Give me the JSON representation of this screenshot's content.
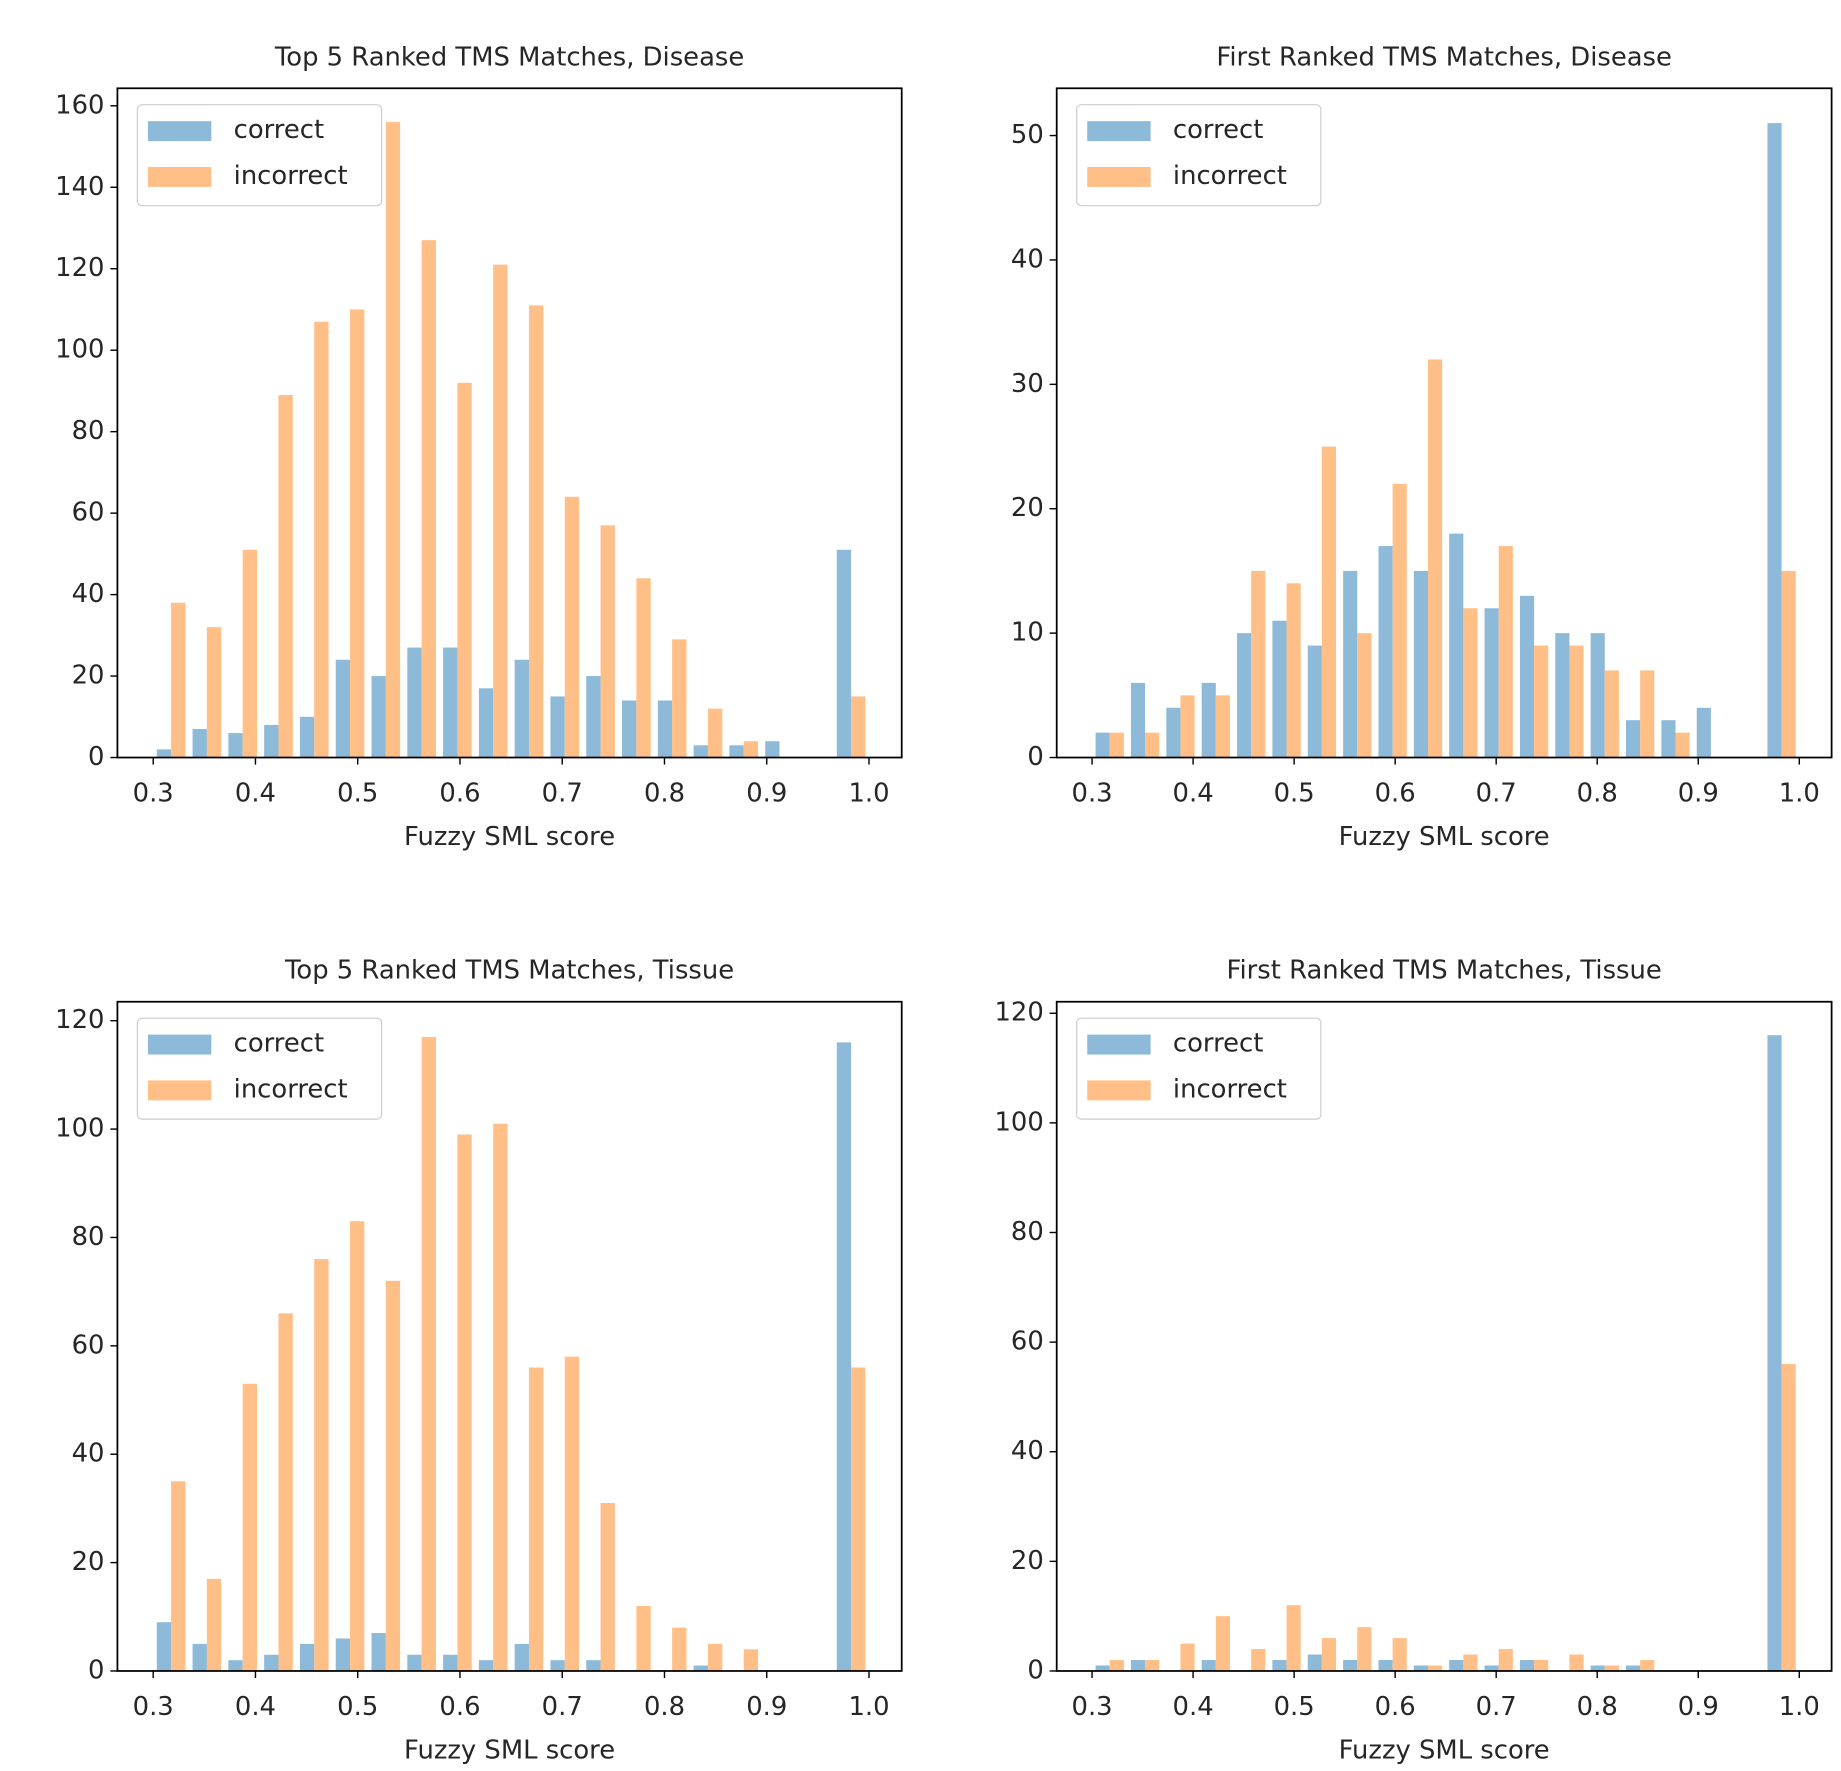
{
  "chart_data": [
    {
      "type": "histogram",
      "title": "Top 5 Ranked TMS Matches, Disease",
      "xlabel": "Fuzzy SML score",
      "legend": "upper left",
      "bins": [
        0.3,
        0.335,
        0.37,
        0.405,
        0.44,
        0.475,
        0.51,
        0.545,
        0.58,
        0.615,
        0.65,
        0.685,
        0.72,
        0.755,
        0.79,
        0.825,
        0.86,
        0.895,
        0.93,
        0.965,
        1.0
      ],
      "series": [
        {
          "name": "correct",
          "color": "#8ebad9",
          "values": [
            2,
            7,
            6,
            8,
            10,
            24,
            20,
            27,
            27,
            17,
            24,
            15,
            20,
            14,
            14,
            3,
            3,
            4,
            0,
            51
          ]
        },
        {
          "name": "incorrect",
          "color": "#ffbf86",
          "values": [
            38,
            32,
            51,
            89,
            107,
            110,
            156,
            127,
            92,
            121,
            111,
            64,
            57,
            44,
            29,
            12,
            4,
            0,
            0,
            15
          ]
        }
      ],
      "xlim": [
        0.265,
        1.032
      ],
      "ylim": [
        0,
        164.3
      ],
      "xticks": [
        0.3,
        0.4,
        0.5,
        0.6,
        0.7,
        0.8,
        0.9,
        {
          "value": 1,
          "label": "1.0"
        }
      ],
      "yticks": [
        0,
        20,
        40,
        60,
        80,
        100,
        120,
        140,
        160
      ]
    },
    {
      "type": "histogram",
      "title": "First Ranked TMS Matches, Disease",
      "xlabel": "Fuzzy SML score",
      "legend": "upper left",
      "bins": [
        0.3,
        0.335,
        0.37,
        0.405,
        0.44,
        0.475,
        0.51,
        0.545,
        0.58,
        0.615,
        0.65,
        0.685,
        0.72,
        0.755,
        0.79,
        0.825,
        0.86,
        0.895,
        0.93,
        0.965,
        1.0
      ],
      "series": [
        {
          "name": "correct",
          "color": "#8ebad9",
          "values": [
            2,
            6,
            4,
            6,
            10,
            11,
            9,
            15,
            17,
            15,
            18,
            12,
            13,
            10,
            10,
            3,
            3,
            4,
            0,
            51
          ]
        },
        {
          "name": "incorrect",
          "color": "#ffbf86",
          "values": [
            2,
            2,
            5,
            5,
            15,
            14,
            25,
            10,
            22,
            32,
            12,
            17,
            9,
            9,
            7,
            7,
            2,
            0,
            0,
            15
          ]
        }
      ],
      "xlim": [
        0.265,
        1.032
      ],
      "ylim": [
        0,
        53.8
      ],
      "xticks": [
        0.3,
        0.4,
        0.5,
        0.6,
        0.7,
        0.8,
        0.9,
        {
          "value": 1,
          "label": "1.0"
        }
      ],
      "yticks": [
        0,
        10,
        20,
        30,
        40,
        50
      ]
    },
    {
      "type": "histogram",
      "title": "Top 5 Ranked TMS Matches, Tissue",
      "xlabel": "Fuzzy SML score",
      "legend": "upper left",
      "bins": [
        0.3,
        0.335,
        0.37,
        0.405,
        0.44,
        0.475,
        0.51,
        0.545,
        0.58,
        0.615,
        0.65,
        0.685,
        0.72,
        0.755,
        0.79,
        0.825,
        0.86,
        0.895,
        0.93,
        0.965,
        1.0
      ],
      "series": [
        {
          "name": "correct",
          "color": "#8ebad9",
          "values": [
            9,
            5,
            2,
            3,
            5,
            6,
            7,
            3,
            3,
            2,
            5,
            2,
            2,
            0,
            0,
            1,
            0,
            0,
            0,
            116
          ]
        },
        {
          "name": "incorrect",
          "color": "#ffbf86",
          "values": [
            35,
            17,
            53,
            66,
            76,
            83,
            72,
            117,
            99,
            101,
            56,
            58,
            31,
            12,
            8,
            5,
            4,
            0,
            0,
            56
          ]
        }
      ],
      "xlim": [
        0.265,
        1.032
      ],
      "ylim": [
        0,
        123.5
      ],
      "xticks": [
        0.3,
        0.4,
        0.5,
        0.6,
        0.7,
        0.8,
        0.9,
        {
          "value": 1,
          "label": "1.0"
        }
      ],
      "yticks": [
        0,
        20,
        40,
        60,
        80,
        100,
        120
      ]
    },
    {
      "type": "histogram",
      "title": "First Ranked TMS Matches, Tissue",
      "xlabel": "Fuzzy SML score",
      "legend": "upper left",
      "bins": [
        0.3,
        0.335,
        0.37,
        0.405,
        0.44,
        0.475,
        0.51,
        0.545,
        0.58,
        0.615,
        0.65,
        0.685,
        0.72,
        0.755,
        0.79,
        0.825,
        0.86,
        0.895,
        0.93,
        0.965,
        1.0
      ],
      "series": [
        {
          "name": "correct",
          "color": "#8ebad9",
          "values": [
            1,
            2,
            0,
            2,
            0,
            2,
            3,
            2,
            2,
            1,
            2,
            1,
            2,
            0,
            1,
            1,
            0,
            0,
            0,
            116
          ]
        },
        {
          "name": "incorrect",
          "color": "#ffbf86",
          "values": [
            2,
            2,
            5,
            10,
            4,
            12,
            6,
            8,
            6,
            1,
            3,
            4,
            2,
            3,
            1,
            2,
            0,
            0,
            0,
            56
          ]
        }
      ],
      "xlim": [
        0.265,
        1.032
      ],
      "ylim": [
        0,
        122.1
      ],
      "xticks": [
        0.3,
        0.4,
        0.5,
        0.6,
        0.7,
        0.8,
        0.9,
        {
          "value": 1,
          "label": "1.0"
        }
      ],
      "yticks": [
        0,
        20,
        40,
        60,
        80,
        100,
        120
      ]
    }
  ]
}
